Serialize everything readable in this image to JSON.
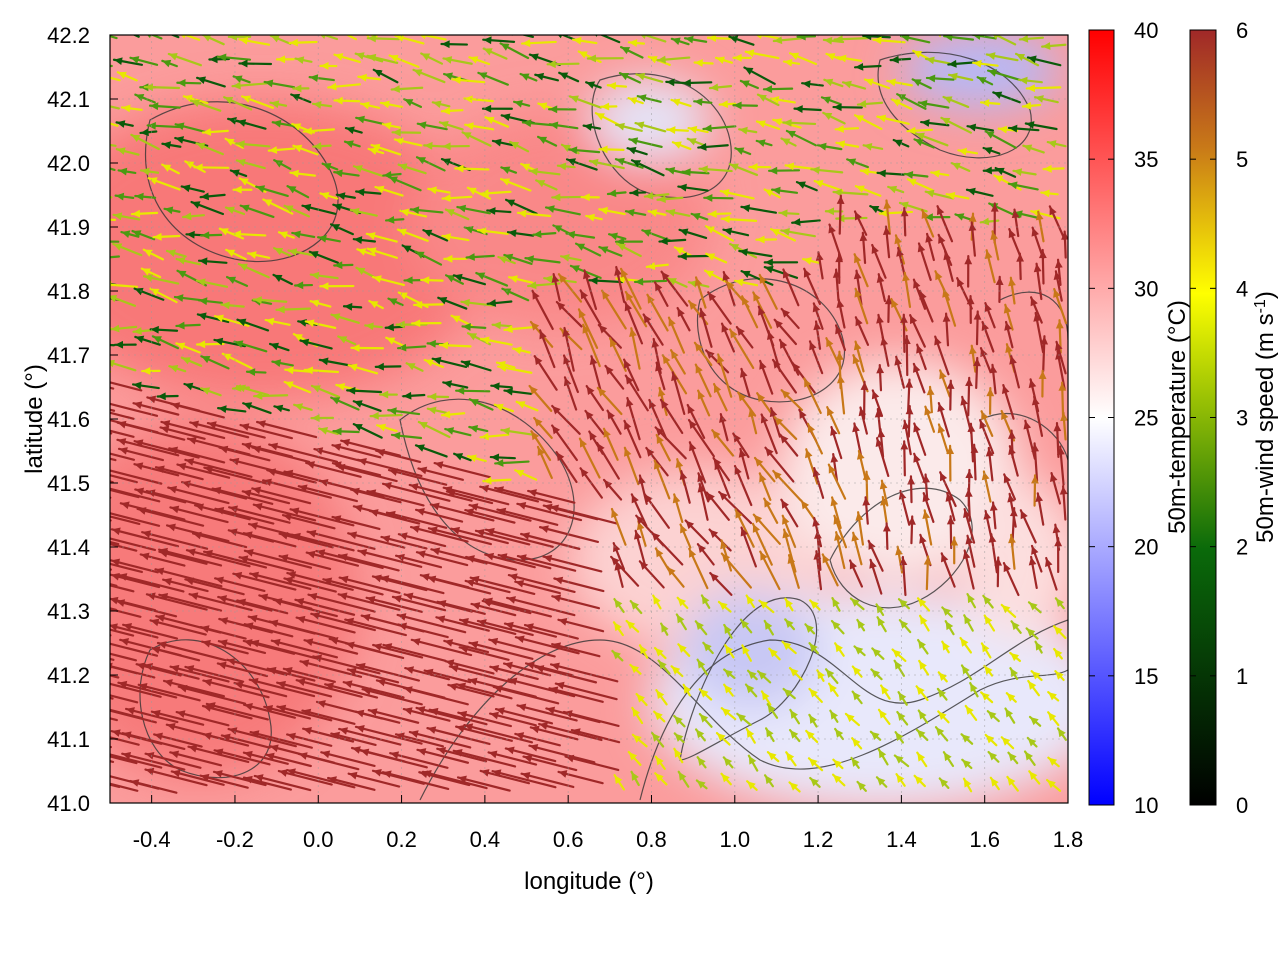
{
  "chart_data": {
    "type": "heatmap",
    "title": "",
    "xlabel": "longitude (°)",
    "ylabel": "latitude (°)",
    "xlim": [
      -0.5,
      1.8
    ],
    "ylim": [
      41.0,
      42.2
    ],
    "xticks": [
      "-0.4",
      "-0.2",
      "0.0",
      "0.2",
      "0.4",
      "0.6",
      "0.8",
      "1.0",
      "1.2",
      "1.4",
      "1.6",
      "1.8"
    ],
    "yticks": [
      "41.0",
      "41.1",
      "41.2",
      "41.3",
      "41.4",
      "41.5",
      "41.6",
      "41.7",
      "41.8",
      "41.9",
      "42.0",
      "42.1",
      "42.2"
    ],
    "grid": true,
    "overlay": "wind vectors (arrows) and contour lines",
    "colorbars": [
      {
        "name": "temperature",
        "label": "50m-temperature (°C)",
        "range": [
          10,
          40
        ],
        "ticks": [
          "10",
          "15",
          "20",
          "25",
          "30",
          "35",
          "40"
        ],
        "colors": [
          "#0000ff",
          "#ffffff",
          "#ff0000"
        ]
      },
      {
        "name": "wind",
        "label_main": "50m-wind speed (m s",
        "label_sup": "-1",
        "label_end": ")",
        "range": [
          0,
          6
        ],
        "ticks": [
          "0",
          "1",
          "2",
          "3",
          "4",
          "5",
          "6"
        ],
        "colors": [
          "#000000",
          "#0a6a0a",
          "#ffff00",
          "#c87818",
          "#a02828"
        ]
      }
    ]
  }
}
